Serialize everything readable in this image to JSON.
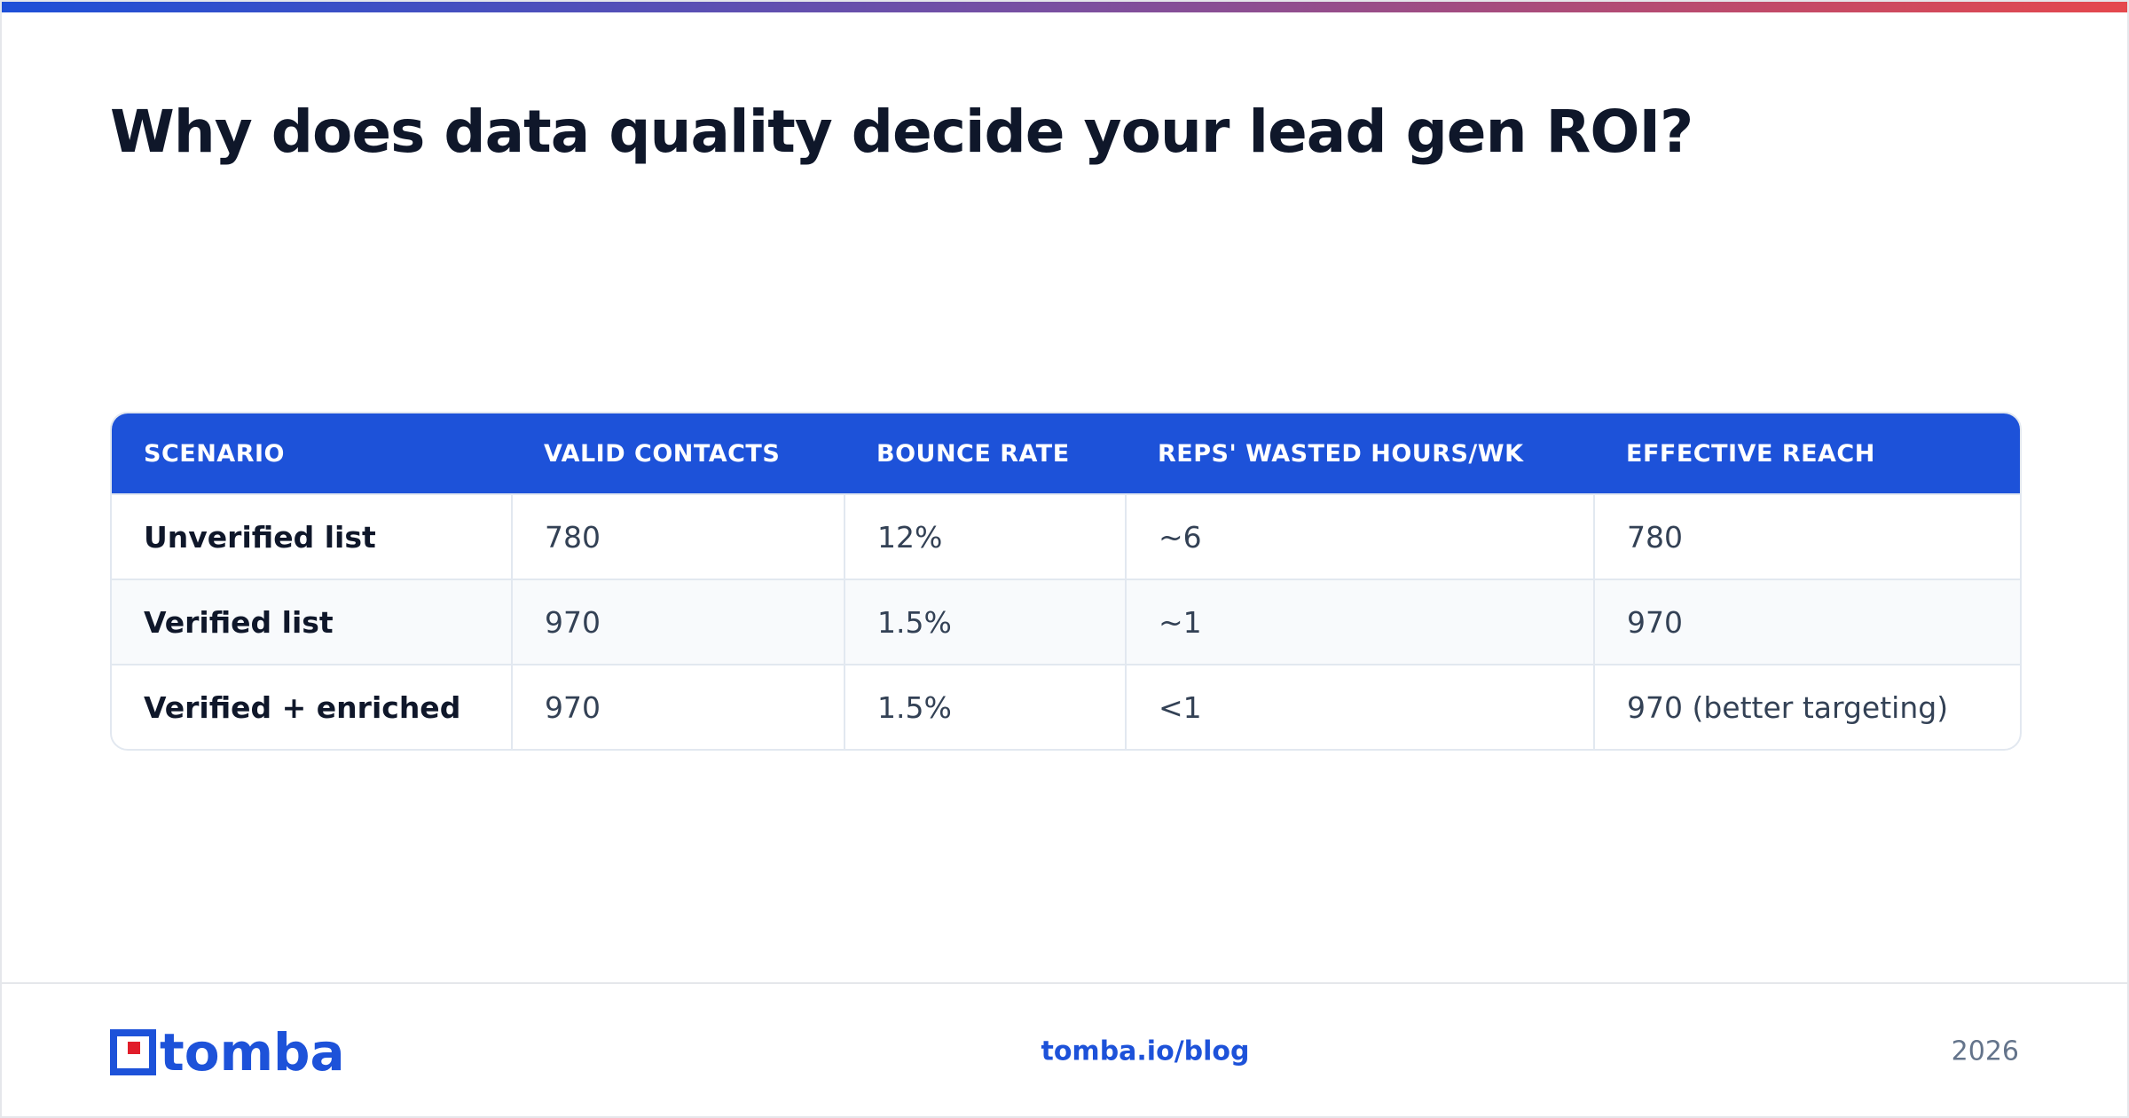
{
  "header": {
    "title": "Why does data quality decide your lead gen ROI?"
  },
  "table": {
    "columns": [
      "SCENARIO",
      "VALID CONTACTS",
      "BOUNCE RATE",
      "REPS' WASTED HOURS/WK",
      "EFFECTIVE REACH"
    ],
    "rows": [
      [
        "Unverified list",
        "780",
        "12%",
        "~6",
        "780"
      ],
      [
        "Verified list",
        "970",
        "1.5%",
        "~1",
        "970"
      ],
      [
        "Verified + enriched",
        "970",
        "1.5%",
        "<1",
        "970 (better targeting)"
      ]
    ]
  },
  "footer": {
    "brand": "tomba",
    "link": "tomba.io/blog",
    "year": "2026"
  }
}
